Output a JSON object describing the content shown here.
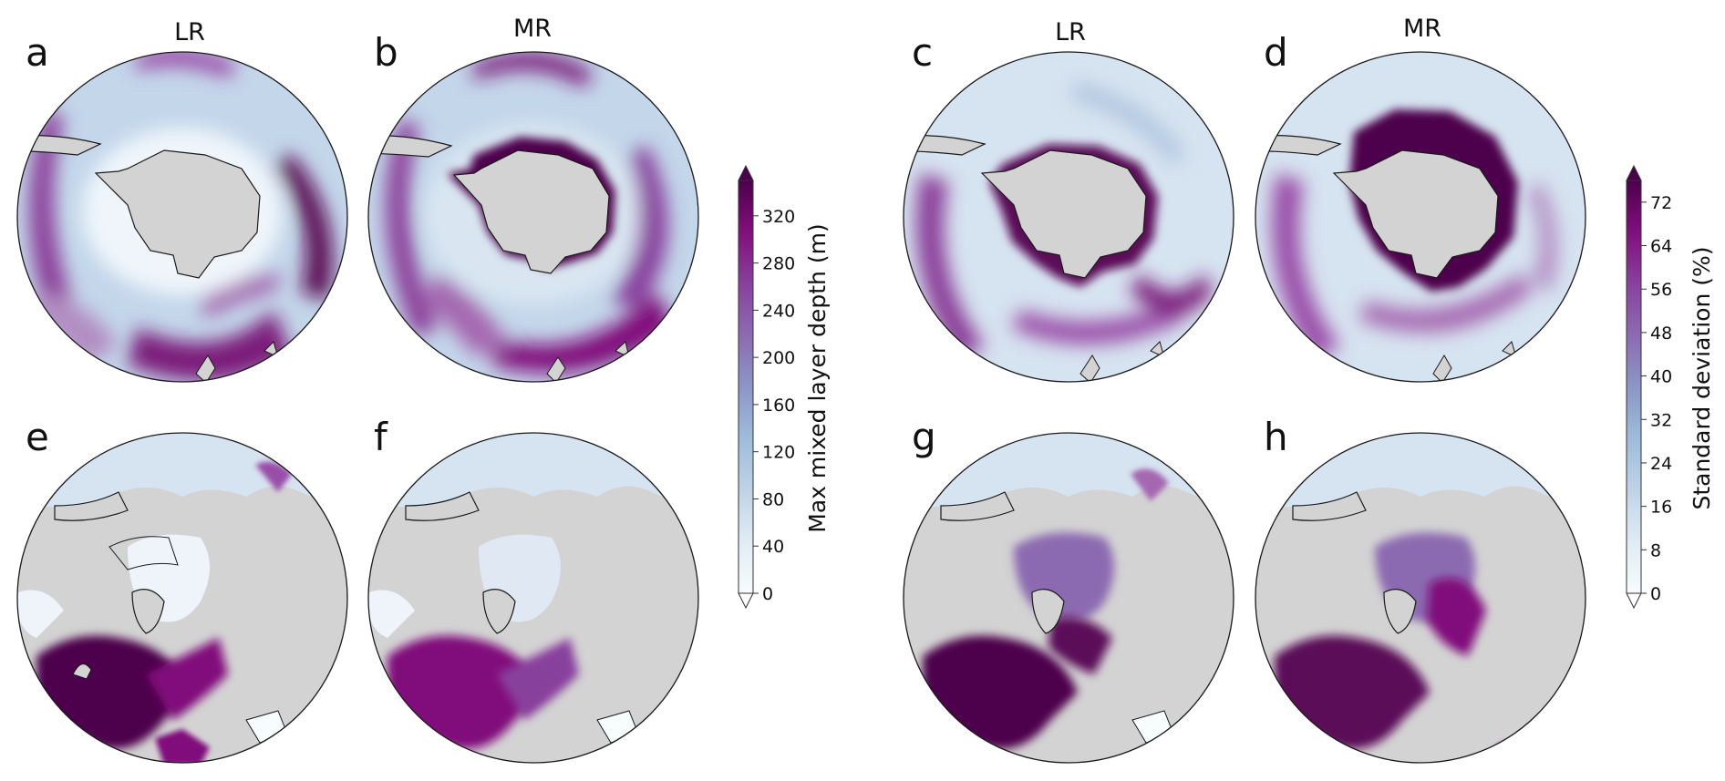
{
  "figure": {
    "panels": [
      {
        "id": "a",
        "letter": "a",
        "title": "LR",
        "hemisphere": "south",
        "colorbar": "mld"
      },
      {
        "id": "b",
        "letter": "b",
        "title": "MR",
        "hemisphere": "south",
        "colorbar": "mld"
      },
      {
        "id": "c",
        "letter": "c",
        "title": "LR",
        "hemisphere": "south",
        "colorbar": "std"
      },
      {
        "id": "d",
        "letter": "d",
        "title": "MR",
        "hemisphere": "south",
        "colorbar": "std"
      },
      {
        "id": "e",
        "letter": "e",
        "title": "",
        "hemisphere": "north",
        "colorbar": "mld"
      },
      {
        "id": "f",
        "letter": "f",
        "title": "",
        "hemisphere": "north",
        "colorbar": "mld"
      },
      {
        "id": "g",
        "letter": "g",
        "title": "",
        "hemisphere": "north",
        "colorbar": "std"
      },
      {
        "id": "h",
        "letter": "h",
        "title": "",
        "hemisphere": "north",
        "colorbar": "std"
      }
    ],
    "colorbars": {
      "mld": {
        "label": "Max mixed layer depth (m)",
        "ticks": [
          "0",
          "40",
          "80",
          "120",
          "160",
          "200",
          "240",
          "280",
          "320"
        ],
        "range": [
          0,
          350
        ],
        "extend": "both"
      },
      "std": {
        "label": "Standard deviation (%)",
        "ticks": [
          "0",
          "8",
          "16",
          "24",
          "32",
          "40",
          "48",
          "56",
          "64",
          "72"
        ],
        "range": [
          0,
          76
        ],
        "extend": "both"
      }
    },
    "colormap": [
      "#f7fcfd",
      "#e0ecf4",
      "#bfd3e6",
      "#9ebcda",
      "#8c96c6",
      "#8c6bb1",
      "#88419d",
      "#810f7c",
      "#4d004b"
    ],
    "land_color": "#d3d3d3",
    "outline_color": "#1a1a1a"
  }
}
